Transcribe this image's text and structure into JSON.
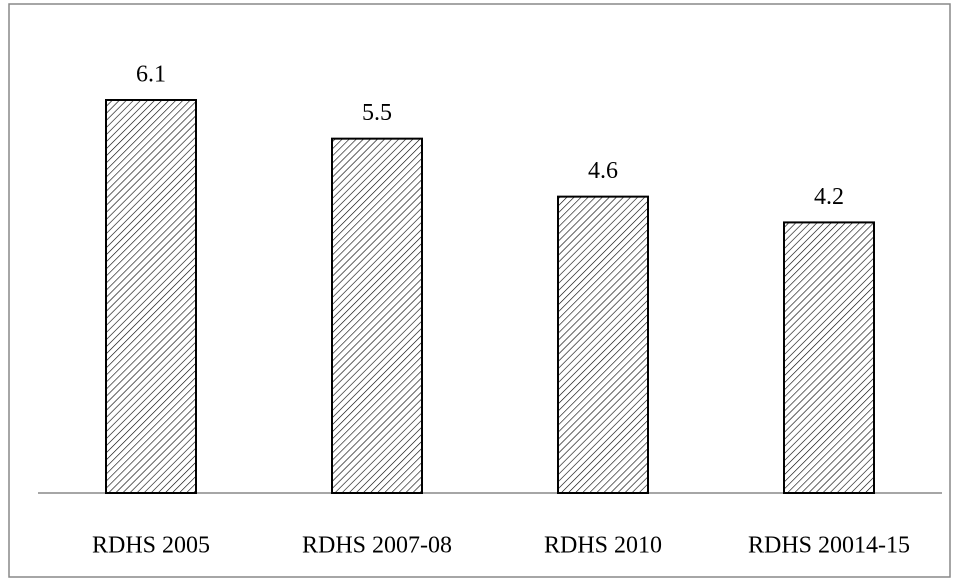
{
  "chart_data": {
    "type": "bar",
    "categories": [
      "RDHS 2005",
      "RDHS 2007-08",
      "RDHS 2010",
      "RDHS 20014-15"
    ],
    "values": [
      6.1,
      5.5,
      4.6,
      4.2
    ]
  }
}
